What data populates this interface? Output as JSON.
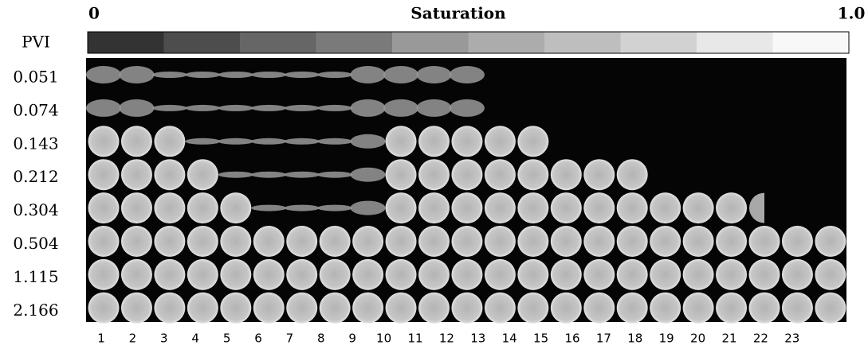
{
  "header": {
    "scale_min": "0",
    "title": "Saturation",
    "scale_max": "1.0"
  },
  "row_header": "PVI",
  "rows": [
    "0.051",
    "0.074",
    "0.143",
    "0.212",
    "0.304",
    "0.504",
    "1.115",
    "2.166"
  ],
  "columns": [
    "1",
    "2",
    "3",
    "4",
    "5",
    "6",
    "7",
    "8",
    "9",
    "10",
    "11",
    "12",
    "13",
    "14",
    "15",
    "16",
    "17",
    "18",
    "19",
    "20",
    "21",
    "22",
    "23"
  ]
}
